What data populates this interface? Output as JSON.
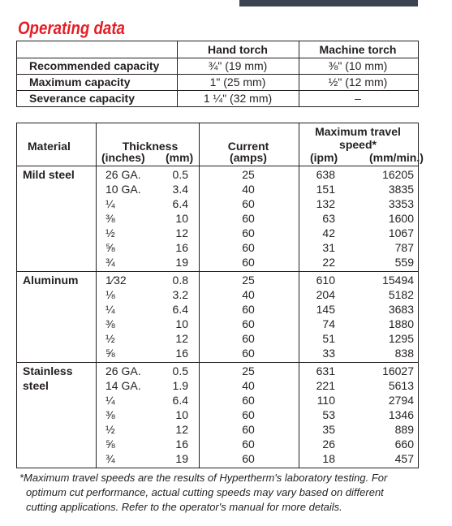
{
  "header": {
    "title": "Operating data"
  },
  "capacity_table": {
    "column_headers": [
      "Hand torch",
      "Machine torch"
    ],
    "rows": [
      {
        "label": "Recommended capacity",
        "hand": "¾\" (19 mm)",
        "machine": "⅜\" (10 mm)"
      },
      {
        "label": "Maximum capacity",
        "hand": "1\" (25 mm)",
        "machine": "½\" (12 mm)"
      },
      {
        "label": "Severance capacity",
        "hand": "1 ¼\" (32 mm)",
        "machine": "–"
      }
    ]
  },
  "cut_table": {
    "headers": {
      "material": "Material",
      "thickness": "Thickness",
      "thickness_in": "(inches)",
      "thickness_mm": "(mm)",
      "current": "Current",
      "current_unit": "(amps)",
      "speed": "Maximum travel speed*",
      "speed_ipm": "(ipm)",
      "speed_mmmin": "(mm/min.)"
    },
    "groups": [
      {
        "material": "Mild steel",
        "rows": [
          [
            "26 GA.",
            "0.5",
            "25",
            "638",
            "16205"
          ],
          [
            "10 GA.",
            "3.4",
            "40",
            "151",
            "3835"
          ],
          [
            "¼",
            "6.4",
            "60",
            "132",
            "3353"
          ],
          [
            "⅜",
            "10",
            "60",
            "63",
            "1600"
          ],
          [
            "½",
            "12",
            "60",
            "42",
            "1067"
          ],
          [
            "⅝",
            "16",
            "60",
            "31",
            "787"
          ],
          [
            "¾",
            "19",
            "60",
            "22",
            "559"
          ]
        ]
      },
      {
        "material": "Aluminum",
        "rows": [
          [
            "1⁄32",
            "0.8",
            "25",
            "610",
            "15494"
          ],
          [
            "⅛",
            "3.2",
            "40",
            "204",
            "5182"
          ],
          [
            "¼",
            "6.4",
            "60",
            "145",
            "3683"
          ],
          [
            "⅜",
            "10",
            "60",
            "74",
            "1880"
          ],
          [
            "½",
            "12",
            "60",
            "51",
            "1295"
          ],
          [
            "⅝",
            "16",
            "60",
            "33",
            "838"
          ]
        ]
      },
      {
        "material": "Stainless steel",
        "rows": [
          [
            "26 GA.",
            "0.5",
            "25",
            "631",
            "16027"
          ],
          [
            "14 GA.",
            "1.9",
            "40",
            "221",
            "5613"
          ],
          [
            "¼",
            "6.4",
            "60",
            "110",
            "2794"
          ],
          [
            "⅜",
            "10",
            "60",
            "53",
            "1346"
          ],
          [
            "½",
            "12",
            "60",
            "35",
            "889"
          ],
          [
            "⅝",
            "16",
            "60",
            "26",
            "660"
          ],
          [
            "¾",
            "19",
            "60",
            "18",
            "457"
          ]
        ]
      }
    ]
  },
  "footnote": "*Maximum travel speeds are the results of Hypertherm's laboratory testing. For optimum cut performance, actual cutting speeds may vary based on different cutting applications. Refer to the operator's manual for more details."
}
